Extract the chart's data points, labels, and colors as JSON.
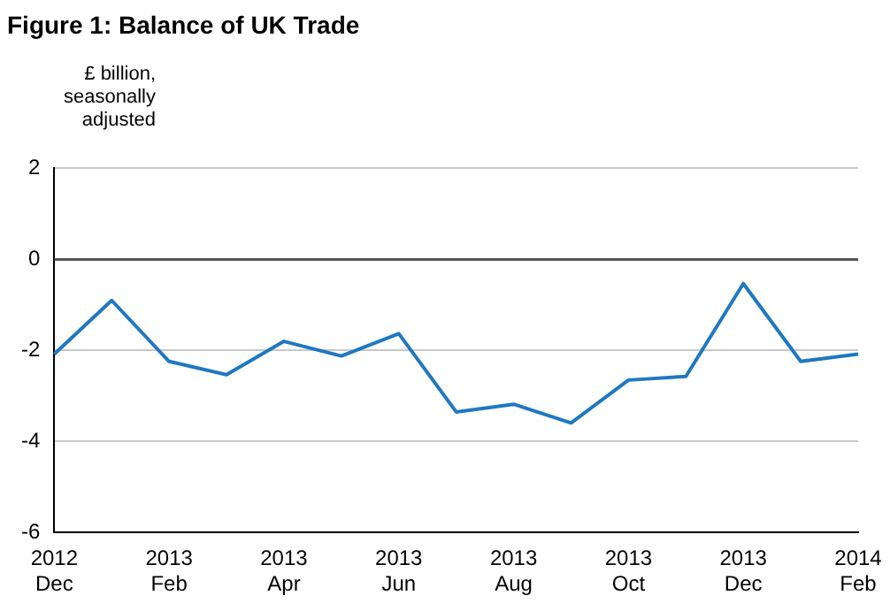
{
  "chart_data": {
    "type": "line",
    "title": "Figure 1: Balance of UK Trade",
    "ylabel": "£ billion, seasonally adjusted",
    "categories": [
      "2012\nDec",
      null,
      "2013\nFeb",
      null,
      "2013\nApr",
      null,
      "2013\nJun",
      null,
      "2013\nAug",
      null,
      "2013\nOct",
      null,
      "2013\nDec",
      null,
      "2014\nFeb"
    ],
    "series": [
      {
        "color": "#1f78c1",
        "values": [
          -2.08,
          -0.9,
          -2.24,
          -2.53,
          -1.8,
          -2.12,
          -1.63,
          -3.35,
          -3.18,
          -3.59,
          -2.65,
          -2.57,
          -0.53,
          -2.24,
          -2.08
        ]
      }
    ],
    "ylim": [
      -6,
      2
    ],
    "yticks": [
      -6,
      -4,
      -2,
      0,
      2
    ],
    "grid": "y",
    "legend": false,
    "marker": "none",
    "line_style": "solid",
    "ref_lines": [
      {
        "axis": "y",
        "value": 0,
        "color": "#555555"
      }
    ]
  }
}
